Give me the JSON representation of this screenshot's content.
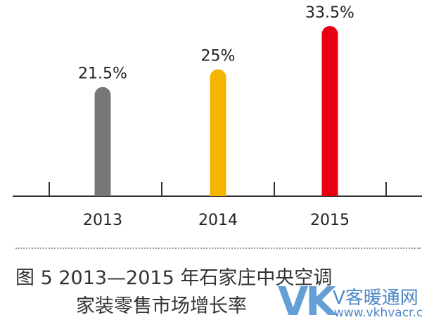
{
  "chart_data": {
    "type": "bar",
    "categories": [
      "2013",
      "2014",
      "2015"
    ],
    "values": [
      21.5,
      25,
      33.5
    ],
    "value_labels": [
      "21.5%",
      "25%",
      "33.5%"
    ],
    "colors": [
      "#777777",
      "#f5b400",
      "#e60012"
    ],
    "ylim": [
      0,
      36
    ],
    "grid": false,
    "title": ""
  },
  "caption": {
    "line1": "图 5  2013—2015 年石家庄中央空调",
    "line2": "家装零售市场增长率"
  },
  "watermark": {
    "logo": "VK",
    "name": "V客暖通网",
    "url": "www.vkhvacr.com"
  }
}
